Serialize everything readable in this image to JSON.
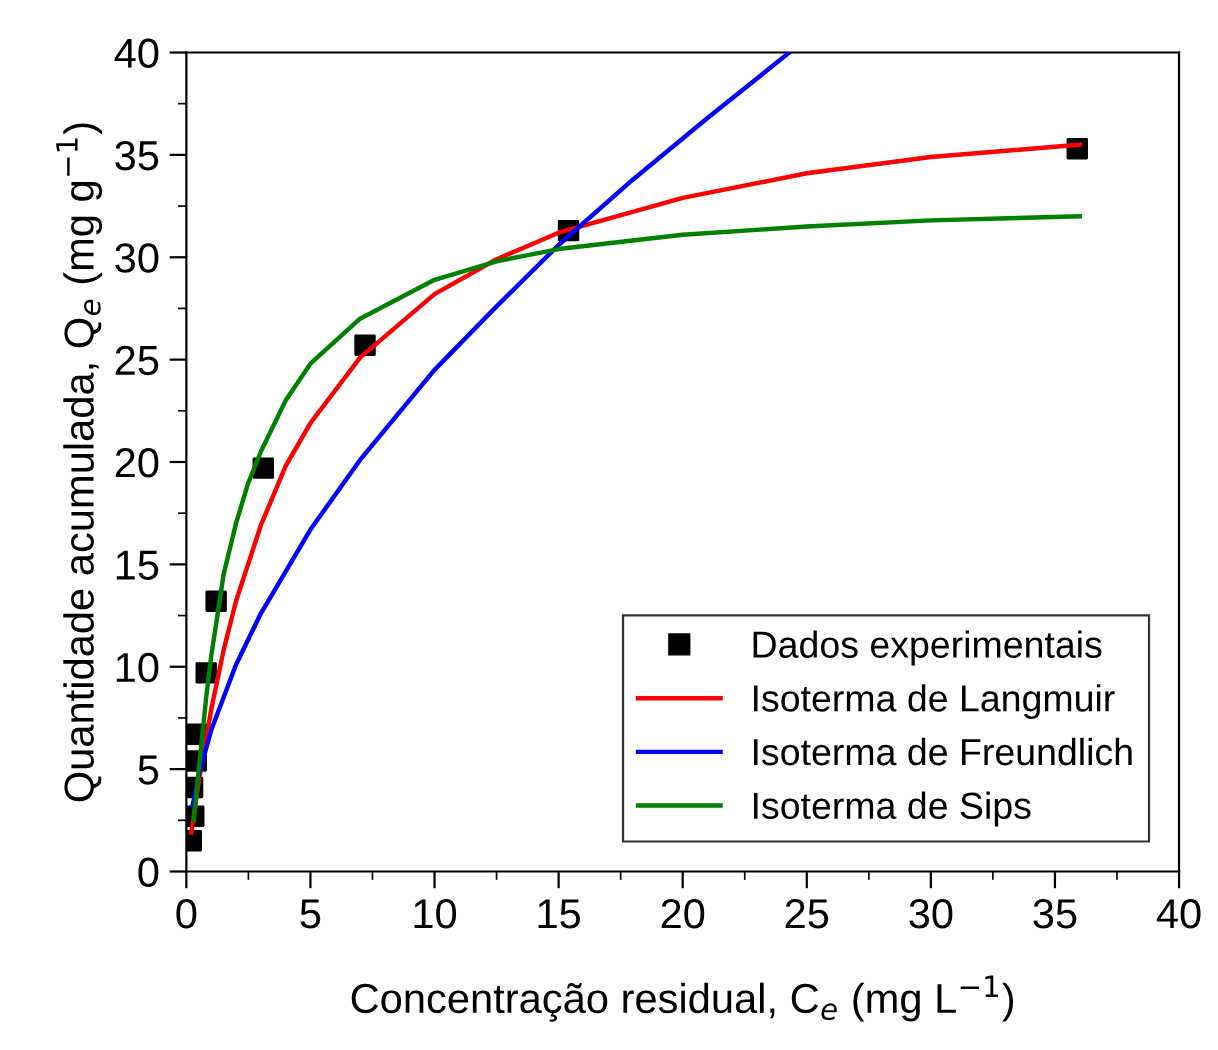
{
  "chart_data": {
    "type": "line",
    "xlabel": "Concentração residual, C$_{e}$ (mg L$^{−1}$)",
    "ylabel": "Quantidade acumulada, Q$_{e}$ (mg g$^{−1}$)",
    "xlim": [
      0,
      40
    ],
    "ylim": [
      0,
      40
    ],
    "xticks": [
      0,
      5,
      10,
      15,
      20,
      25,
      30,
      35,
      40
    ],
    "yticks": [
      0,
      5,
      10,
      15,
      20,
      25,
      30,
      35,
      40
    ],
    "grid": false,
    "legend": "bottom right",
    "line_style": "solid",
    "series": [
      {
        "name": "Dados experimentais",
        "type": "scatter",
        "marker": "square",
        "color": "#000000",
        "x": [
          0.2,
          0.3,
          0.25,
          0.4,
          0.45,
          0.8,
          1.2,
          3.1,
          7.2,
          15.4,
          35.9
        ],
        "values": [
          1.5,
          2.7,
          4.1,
          5.4,
          6.7,
          9.7,
          13.2,
          19.7,
          25.7,
          31.3,
          35.3
        ]
      },
      {
        "name": "Isoterma de Langmuir",
        "color": "#ff0000",
        "x": [
          0.2,
          0.5,
          1,
          1.5,
          2,
          3,
          4,
          5,
          7,
          10,
          12.5,
          15,
          20,
          25,
          30,
          36
        ],
        "values": [
          1.9,
          4.4,
          7.9,
          10.8,
          13.2,
          16.9,
          19.8,
          21.9,
          25.1,
          28.2,
          29.9,
          31.2,
          32.9,
          34.1,
          34.9,
          35.5
        ]
      },
      {
        "name": "Isoterma de Freundlich",
        "color": "#0000ff",
        "x": [
          0.25,
          0.5,
          1,
          2,
          3,
          5,
          7,
          10,
          12.5,
          15,
          18,
          21,
          24.3
        ],
        "values": [
          3.2,
          4.7,
          6.9,
          10.1,
          12.6,
          16.7,
          20.1,
          24.5,
          27.6,
          30.6,
          33.8,
          36.8,
          40
        ]
      },
      {
        "name": "Isoterma de Sips",
        "color": "#008000",
        "x": [
          0.3,
          0.5,
          0.8,
          1,
          1.5,
          2,
          2.5,
          3,
          4,
          5,
          7,
          10,
          12.5,
          15,
          20,
          25,
          30,
          36
        ],
        "values": [
          2.5,
          5,
          8.5,
          10.5,
          14.5,
          17,
          19,
          20.5,
          23,
          24.8,
          27,
          28.9,
          29.8,
          30.4,
          31.1,
          31.5,
          31.8,
          32.0
        ]
      }
    ]
  }
}
